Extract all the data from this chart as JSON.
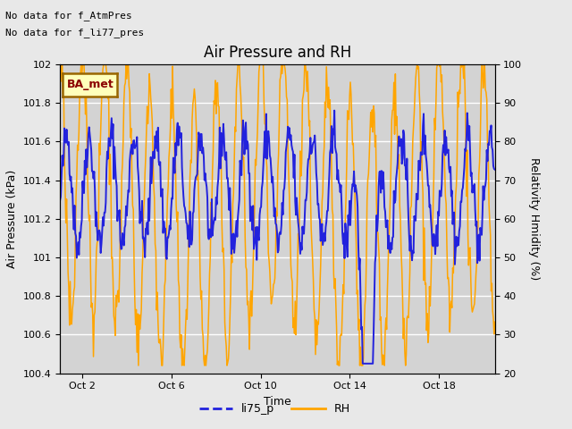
{
  "title": "Air Pressure and RH",
  "xlabel": "Time",
  "ylabel_left": "Air Pressure (kPa)",
  "ylabel_right": "Relativity Hmidity (%)",
  "text_no_data_1": "No data for f_AtmPres",
  "text_no_data_2": "No data for f_li77_pres",
  "ba_met_label": "BA_met",
  "legend_entries": [
    "li75_p",
    "RH"
  ],
  "line_color_blue": "#2222dd",
  "line_color_orange": "#FFA500",
  "ylim_left": [
    100.4,
    102.0
  ],
  "ylim_right": [
    20,
    100
  ],
  "yticks_left": [
    100.4,
    100.6,
    100.8,
    101.0,
    101.2,
    101.4,
    101.6,
    101.8,
    102.0
  ],
  "yticks_right": [
    20,
    30,
    40,
    50,
    60,
    70,
    80,
    90,
    100
  ],
  "xtick_labels": [
    "Oct 2",
    "Oct 6",
    "Oct 10",
    "Oct 14",
    "Oct 18"
  ],
  "xtick_positions": [
    1,
    5,
    9,
    13,
    17
  ],
  "xlim": [
    0,
    19.5
  ],
  "background_color": "#e8e8e8",
  "plot_bg_color": "#d3d3d3",
  "grid_color": "#ffffff",
  "fontsize_title": 12,
  "fontsize_labels": 9,
  "fontsize_ticks": 8,
  "fontsize_nodata": 8,
  "fontsize_bamet": 9
}
